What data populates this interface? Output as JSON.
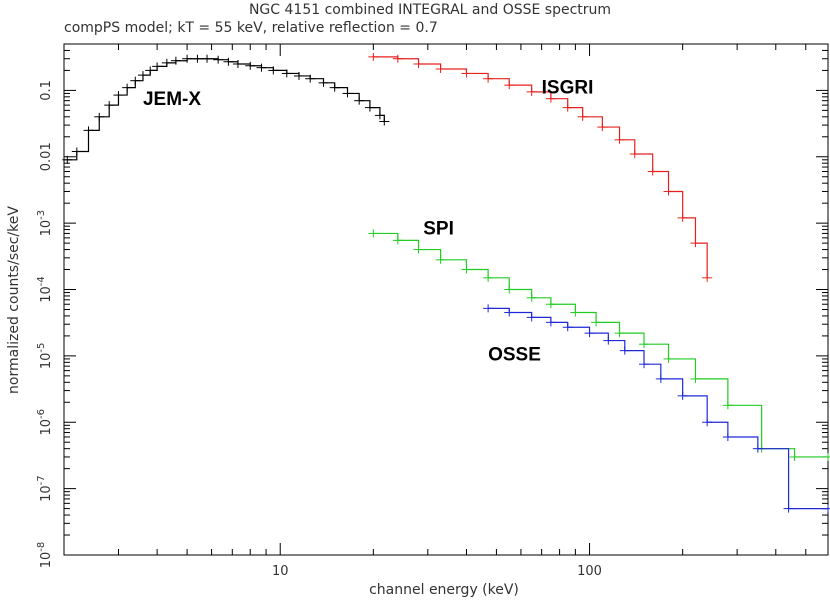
{
  "chart_data": {
    "type": "line",
    "title": "NGC 4151 combined INTEGRAL and OSSE spectrum",
    "subtitle": "compPS model; kT = 55 keV, relative reflection = 0.7",
    "xlabel": "channel energy (keV)",
    "ylabel": "normalized counts/sec/keV",
    "x_scale": "log",
    "y_scale": "log",
    "xlim": [
      2,
      590
    ],
    "ylim": [
      1e-08,
      0.5
    ],
    "grid": false,
    "x_ticks": [
      {
        "value": 10,
        "label": "10"
      },
      {
        "value": 100,
        "label": "100"
      }
    ],
    "y_ticks": [
      {
        "value": 0.1,
        "label": "0.1"
      },
      {
        "value": 0.01,
        "label": "0.01"
      },
      {
        "value": 0.001,
        "label": "10^-3"
      },
      {
        "value": 0.0001,
        "label": "10^-4"
      },
      {
        "value": 1e-05,
        "label": "10^-5"
      },
      {
        "value": 1e-06,
        "label": "10^-6"
      },
      {
        "value": 1e-07,
        "label": "10^-7"
      },
      {
        "value": 1e-08,
        "label": "10^-8"
      }
    ],
    "series": [
      {
        "name": "JEM-X",
        "color": "#000000",
        "label_position": {
          "x": 3.6,
          "y": 0.06
        },
        "x": [
          2.05,
          2.2,
          2.4,
          2.6,
          2.8,
          3.0,
          3.2,
          3.4,
          3.6,
          3.8,
          4.0,
          4.3,
          4.6,
          5.0,
          5.4,
          5.8,
          6.3,
          6.8,
          7.3,
          8.0,
          8.7,
          9.5,
          10.5,
          11.5,
          12.5,
          13.8,
          15.0,
          16.5,
          18.0,
          19.5,
          21.0,
          21.7
        ],
        "y": [
          0.009,
          0.012,
          0.025,
          0.04,
          0.06,
          0.085,
          0.11,
          0.14,
          0.17,
          0.2,
          0.23,
          0.26,
          0.28,
          0.3,
          0.3,
          0.3,
          0.29,
          0.27,
          0.25,
          0.235,
          0.22,
          0.2,
          0.18,
          0.165,
          0.15,
          0.13,
          0.11,
          0.09,
          0.07,
          0.055,
          0.042,
          0.034
        ]
      },
      {
        "name": "ISGRI",
        "color": "#e8201c",
        "label_position": {
          "x": 70,
          "y": 0.09
        },
        "x": [
          20,
          24,
          28,
          33,
          40,
          47,
          55,
          65,
          75,
          85,
          95,
          110,
          125,
          140,
          160,
          180,
          200,
          220,
          240
        ],
        "y": [
          0.32,
          0.3,
          0.25,
          0.21,
          0.18,
          0.15,
          0.12,
          0.095,
          0.075,
          0.055,
          0.04,
          0.028,
          0.018,
          0.011,
          0.006,
          0.003,
          0.0012,
          0.0005,
          0.00015
        ]
      },
      {
        "name": "SPI",
        "color": "#22cc22",
        "label_position": {
          "x": 29,
          "y": 0.00068
        },
        "x": [
          20,
          24,
          28,
          33,
          40,
          47,
          55,
          65,
          75,
          90,
          105,
          125,
          150,
          180,
          220,
          280,
          360,
          460,
          590
        ],
        "y": [
          0.0007,
          0.00055,
          0.0004,
          0.00028,
          0.0002,
          0.00015,
          0.0001,
          7.5e-05,
          6e-05,
          4.5e-05,
          3.2e-05,
          2.2e-05,
          1.5e-05,
          9e-06,
          4.5e-06,
          1.8e-06,
          4e-07,
          3e-07,
          3e-07
        ]
      },
      {
        "name": "OSSE",
        "color": "#1e28d8",
        "label_position": {
          "x": 47,
          "y": 8.5e-06
        },
        "x": [
          47,
          55,
          65,
          75,
          85,
          100,
          115,
          130,
          150,
          170,
          200,
          240,
          280,
          350,
          440,
          590
        ],
        "y": [
          5.2e-05,
          4.5e-05,
          3.8e-05,
          3.2e-05,
          2.7e-05,
          2.2e-05,
          1.7e-05,
          1.2e-05,
          7.5e-06,
          4.5e-06,
          2.5e-06,
          1e-06,
          6e-07,
          4e-07,
          5e-08,
          5e-08
        ]
      }
    ]
  }
}
